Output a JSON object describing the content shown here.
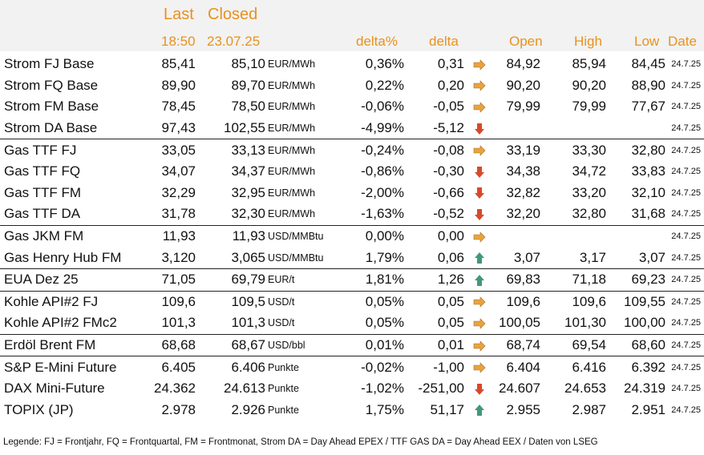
{
  "header": {
    "last": "Last",
    "closed": "Closed",
    "time": "18:50",
    "date_closed": "23.07.25",
    "delta_pct": "delta%",
    "delta": "delta",
    "open": "Open",
    "high": "High",
    "low": "Low",
    "date": "Date"
  },
  "colors": {
    "header_text": "#e8911e",
    "up": "#3f9a7a",
    "down": "#d64a2a",
    "flat": "#e8a33d"
  },
  "rows": [
    {
      "name": "Strom FJ Base",
      "last": "85,41",
      "closed": "85,10",
      "unit": "EUR/MWh",
      "pct": "0,36%",
      "delta": "0,31",
      "trend": "flat",
      "open": "84,92",
      "high": "85,94",
      "low": "84,45",
      "date": "24.7.25",
      "sep": false
    },
    {
      "name": "Strom FQ Base",
      "last": "89,90",
      "closed": "89,70",
      "unit": "EUR/MWh",
      "pct": "0,22%",
      "delta": "0,20",
      "trend": "flat",
      "open": "90,20",
      "high": "90,20",
      "low": "88,90",
      "date": "24.7.25",
      "sep": false
    },
    {
      "name": "Strom FM Base",
      "last": "78,45",
      "closed": "78,50",
      "unit": "EUR/MWh",
      "pct": "-0,06%",
      "delta": "-0,05",
      "trend": "flat",
      "open": "79,99",
      "high": "79,99",
      "low": "77,67",
      "date": "24.7.25",
      "sep": false
    },
    {
      "name": "Strom DA Base",
      "last": "97,43",
      "closed": "102,55",
      "unit": "EUR/MWh",
      "pct": "-4,99%",
      "delta": "-5,12",
      "trend": "down",
      "open": "",
      "high": "",
      "low": "",
      "date": "24.7.25",
      "sep": false
    },
    {
      "name": "Gas TTF FJ",
      "last": "33,05",
      "closed": "33,13",
      "unit": "EUR/MWh",
      "pct": "-0,24%",
      "delta": "-0,08",
      "trend": "flat",
      "open": "33,19",
      "high": "33,30",
      "low": "32,80",
      "date": "24.7.25",
      "sep": true
    },
    {
      "name": "Gas TTF FQ",
      "last": "34,07",
      "closed": "34,37",
      "unit": "EUR/MWh",
      "pct": "-0,86%",
      "delta": "-0,30",
      "trend": "down",
      "open": "34,38",
      "high": "34,72",
      "low": "33,83",
      "date": "24.7.25",
      "sep": false
    },
    {
      "name": "Gas TTF FM",
      "last": "32,29",
      "closed": "32,95",
      "unit": "EUR/MWh",
      "pct": "-2,00%",
      "delta": "-0,66",
      "trend": "down",
      "open": "32,82",
      "high": "33,20",
      "low": "32,10",
      "date": "24.7.25",
      "sep": false
    },
    {
      "name": "Gas TTF DA",
      "last": "31,78",
      "closed": "32,30",
      "unit": "EUR/MWh",
      "pct": "-1,63%",
      "delta": "-0,52",
      "trend": "down",
      "open": "32,20",
      "high": "32,80",
      "low": "31,68",
      "date": "24.7.25",
      "sep": false
    },
    {
      "name": "Gas JKM FM",
      "last": "11,93",
      "closed": "11,93",
      "unit": "USD/MMBtu",
      "pct": "0,00%",
      "delta": "0,00",
      "trend": "flat",
      "open": "",
      "high": "",
      "low": "",
      "date": "24.7.25",
      "sep": true
    },
    {
      "name": "Gas Henry Hub FM",
      "last": "3,120",
      "closed": "3,065",
      "unit": "USD/MMBtu",
      "pct": "1,79%",
      "delta": "0,06",
      "trend": "up",
      "open": "3,07",
      "high": "3,17",
      "low": "3,07",
      "date": "24.7.25",
      "sep": false
    },
    {
      "name": "EUA Dez 25",
      "last": "71,05",
      "closed": "69,79",
      "unit": "EUR/t",
      "pct": "1,81%",
      "delta": "1,26",
      "trend": "up",
      "open": "69,83",
      "high": "71,18",
      "low": "69,23",
      "date": "24.7.25",
      "sep": true
    },
    {
      "name": "Kohle API#2 FJ",
      "last": "109,6",
      "closed": "109,5",
      "unit": "USD/t",
      "pct": "0,05%",
      "delta": "0,05",
      "trend": "flat",
      "open": "109,6",
      "high": "109,6",
      "low": "109,55",
      "date": "24.7.25",
      "sep": true
    },
    {
      "name": "Kohle API#2 FMc2",
      "last": "101,3",
      "closed": "101,3",
      "unit": "USD/t",
      "pct": "0,05%",
      "delta": "0,05",
      "trend": "flat",
      "open": "100,05",
      "high": "101,30",
      "low": "100,00",
      "date": "24.7.25",
      "sep": false
    },
    {
      "name": "Erdöl Brent FM",
      "last": "68,68",
      "closed": "68,67",
      "unit": "USD/bbl",
      "pct": "0,01%",
      "delta": "0,01",
      "trend": "flat",
      "open": "68,74",
      "high": "69,54",
      "low": "68,60",
      "date": "24.7.25",
      "sep": true
    },
    {
      "name": "S&P E-Mini Future",
      "last": "6.405",
      "closed": "6.406",
      "unit": "Punkte",
      "pct": "-0,02%",
      "delta": "-1,00",
      "trend": "flat",
      "open": "6.404",
      "high": "6.416",
      "low": "6.392",
      "date": "24.7.25",
      "sep": true
    },
    {
      "name": "DAX Mini-Future",
      "last": "24.362",
      "closed": "24.613",
      "unit": "Punkte",
      "pct": "-1,02%",
      "delta": "-251,00",
      "trend": "down",
      "open": "24.607",
      "high": "24.653",
      "low": "24.319",
      "date": "24.7.25",
      "sep": false
    },
    {
      "name": "TOPIX (JP)",
      "last": "2.978",
      "closed": "2.926",
      "unit": "Punkte",
      "pct": "1,75%",
      "delta": "51,17",
      "trend": "up",
      "open": "2.955",
      "high": "2.987",
      "low": "2.951",
      "date": "24.7.25",
      "sep": false
    }
  ],
  "legend": "Legende: FJ = Frontjahr, FQ = Frontquartal, FM = Frontmonat, Strom DA = Day Ahead EPEX / TTF GAS DA = Day Ahead EEX / Daten von LSEG"
}
